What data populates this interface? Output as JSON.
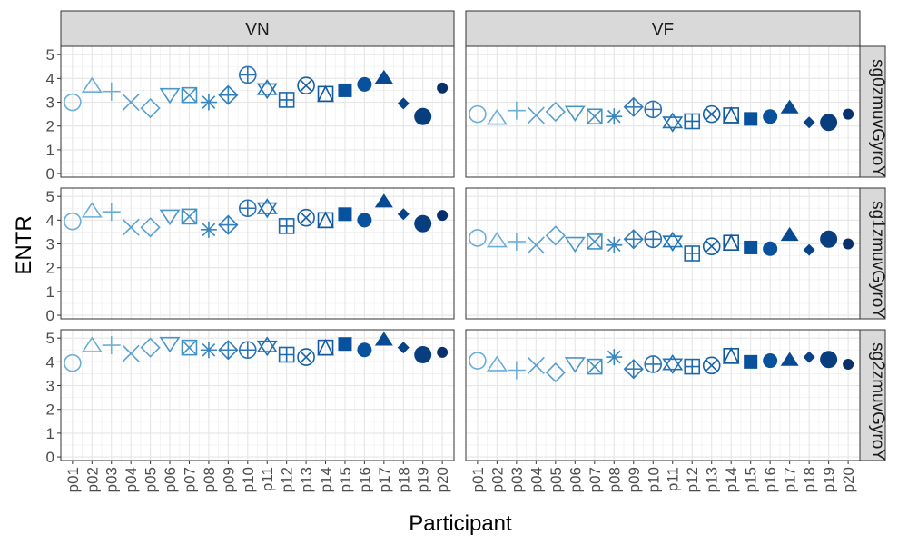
{
  "chart_data": {
    "type": "scatter",
    "title": "",
    "xlabel": "Participant",
    "ylabel": "ENTR",
    "ylim": [
      -0.15,
      5.35
    ],
    "y_ticks": [
      0,
      1,
      2,
      3,
      4,
      5
    ],
    "grid": true,
    "legend": "none",
    "col_facets": [
      "VN",
      "VF"
    ],
    "row_facets": [
      "sg0zmuvGyroY",
      "sg1zmuvGyroY",
      "sg2zmuvGyroY"
    ],
    "categories": [
      "p01",
      "p02",
      "p03",
      "p04",
      "p05",
      "p06",
      "p07",
      "p08",
      "p09",
      "p10",
      "p11",
      "p12",
      "p13",
      "p14",
      "p15",
      "p16",
      "p17",
      "p18",
      "p19",
      "p20"
    ],
    "panels": [
      {
        "col": "VN",
        "row": "sg0zmuvGyroY",
        "values": [
          3.0,
          3.65,
          3.45,
          3.0,
          2.75,
          3.35,
          3.3,
          3.0,
          3.3,
          4.15,
          3.55,
          3.1,
          3.7,
          3.35,
          3.5,
          3.75,
          4.0,
          2.95,
          2.4,
          3.6
        ]
      },
      {
        "col": "VF",
        "row": "sg0zmuvGyroY",
        "values": [
          2.5,
          2.3,
          2.65,
          2.45,
          2.6,
          2.6,
          2.4,
          2.4,
          2.8,
          2.7,
          2.15,
          2.2,
          2.5,
          2.45,
          2.3,
          2.4,
          2.75,
          2.15,
          2.15,
          2.5
        ]
      },
      {
        "col": "VN",
        "row": "sg1zmuvGyroY",
        "values": [
          3.95,
          4.35,
          4.35,
          3.7,
          3.7,
          4.2,
          4.15,
          3.6,
          3.8,
          4.5,
          4.5,
          3.75,
          4.1,
          4.0,
          4.25,
          4.0,
          4.75,
          4.25,
          3.85,
          4.2
        ]
      },
      {
        "col": "VF",
        "row": "sg1zmuvGyroY",
        "values": [
          3.25,
          3.1,
          3.1,
          2.95,
          3.35,
          3.05,
          3.1,
          2.95,
          3.2,
          3.2,
          3.1,
          2.6,
          2.9,
          3.05,
          2.85,
          2.8,
          3.35,
          2.75,
          3.2,
          3.0
        ]
      },
      {
        "col": "VN",
        "row": "sg2zmuvGyroY",
        "values": [
          3.95,
          4.65,
          4.7,
          4.35,
          4.6,
          4.8,
          4.6,
          4.5,
          4.5,
          4.5,
          4.65,
          4.3,
          4.2,
          4.6,
          4.75,
          4.5,
          4.9,
          4.6,
          4.3,
          4.4
        ]
      },
      {
        "col": "VF",
        "row": "sg2zmuvGyroY",
        "values": [
          4.05,
          3.85,
          3.65,
          3.85,
          3.55,
          3.95,
          3.8,
          4.2,
          3.7,
          3.9,
          3.9,
          3.8,
          3.85,
          4.25,
          4.0,
          4.05,
          4.05,
          4.2,
          4.1,
          3.9
        ]
      }
    ],
    "shapes": [
      "circle-open",
      "triangle-open",
      "plus",
      "cross",
      "diamond-open",
      "triangle-down-open",
      "square-cross",
      "asterisk",
      "diamond-plus",
      "circle-plus",
      "star-of-david",
      "square-plus",
      "circle-cross",
      "square-triangle",
      "square-filled",
      "circle-filled",
      "triangle-filled",
      "diamond-filled",
      "circle-filled-large",
      "circle-filled-small"
    ],
    "colors": [
      "#6BAED6",
      "#6BAED6",
      "#6BAED6",
      "#5AA1CF",
      "#5AA1CF",
      "#4A96C9",
      "#4292C6",
      "#3A87C0",
      "#337DBA",
      "#2C72B5",
      "#2171B5",
      "#1C68AB",
      "#1761A3",
      "#125A9B",
      "#08519C",
      "#08519C",
      "#084A91",
      "#084387",
      "#083D7E",
      "#08306B"
    ]
  }
}
